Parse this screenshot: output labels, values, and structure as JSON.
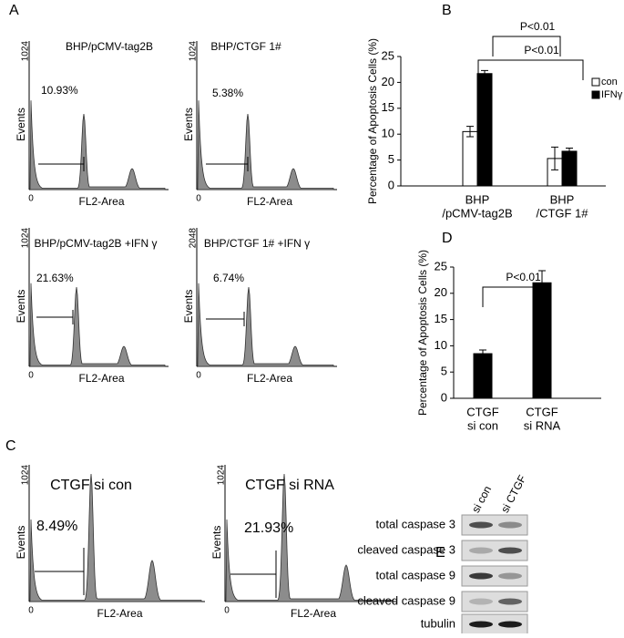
{
  "panel_a": {
    "label": "A",
    "histograms": [
      {
        "title": "BHP/pCMV-tag2B",
        "y_max": 1024,
        "y_axis_label": "Events",
        "x_zero": 0,
        "x_axis_label": "FL2-Area",
        "gate_label": "10.93%"
      },
      {
        "title": "BHP/CTGF 1#",
        "y_max": 1024,
        "y_axis_label": "Events",
        "x_zero": 0,
        "x_axis_label": "FL2-Area",
        "gate_label": "5.38%"
      },
      {
        "title": "BHP/pCMV-tag2B +IFN γ",
        "y_max": 1024,
        "y_axis_label": "Events",
        "x_zero": 0,
        "x_axis_label": "FL2-Area",
        "gate_label": "21.63%"
      },
      {
        "title": "BHP/CTGF 1# +IFN γ",
        "y_max": 2048,
        "y_axis_label": "Events",
        "x_zero": 0,
        "x_axis_label": "FL2-Area",
        "gate_label": "6.74%"
      }
    ]
  },
  "panel_c": {
    "label": "C",
    "histograms": [
      {
        "title": "CTGF si con",
        "y_max": 1024,
        "y_axis_label": "Events",
        "x_zero": 0,
        "x_axis_label": "FL2-Area",
        "gate_label": "8.49%"
      },
      {
        "title": "CTGF si RNA",
        "y_max": 1024,
        "y_axis_label": "Events",
        "x_zero": 0,
        "x_axis_label": "FL2-Area",
        "gate_label": "21.93%"
      }
    ]
  },
  "chart_data": [
    {
      "type": "bar",
      "label": "B",
      "y_axis_label": "Percentage of Apoptosis Cells (%)",
      "categories": [
        [
          "BHP",
          "/pCMV-tag2B"
        ],
        [
          "BHP",
          "/CTGF 1#"
        ]
      ],
      "series": [
        {
          "name": "con",
          "color": "#ffffff",
          "values": [
            10.5,
            5.3
          ],
          "errors": [
            1.0,
            2.2
          ]
        },
        {
          "name": "IFNγ",
          "color": "#000000",
          "values": [
            21.7,
            6.7
          ],
          "errors": [
            0.6,
            0.6
          ]
        }
      ],
      "ylim": [
        0,
        25
      ],
      "yticks": [
        0,
        5,
        10,
        15,
        20,
        25
      ],
      "annotations": [
        "P<0.01",
        "P<0.01"
      ]
    },
    {
      "type": "bar",
      "label": "D",
      "y_axis_label": "Percentage of Apoptosis Cells (%)",
      "categories": [
        [
          "CTGF",
          "si con"
        ],
        [
          "CTGF",
          "si RNA"
        ]
      ],
      "series": [
        {
          "name": null,
          "color": "#000000",
          "values": [
            8.5,
            22.0
          ],
          "errors": [
            0.7,
            2.3
          ]
        }
      ],
      "ylim": [
        0,
        25
      ],
      "yticks": [
        0,
        5,
        10,
        15,
        20,
        25
      ],
      "annotations": [
        "P<0.01"
      ]
    }
  ],
  "panel_e": {
    "label": "E",
    "lanes": [
      "si con",
      "si CTGF"
    ],
    "rows": [
      "total caspase 3",
      "cleaved caspase 3",
      "total caspase 9",
      "cleaved caspase 9",
      "tubulin"
    ]
  }
}
